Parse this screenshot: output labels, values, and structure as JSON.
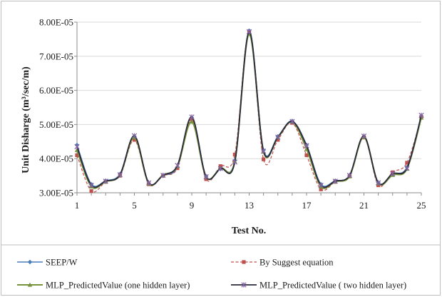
{
  "chart_data": {
    "type": "line",
    "xlabel": "Test No.",
    "ylabel": "Unit Disharge (m³/sec/m)",
    "xlim": [
      1,
      25
    ],
    "ylim": [
      3e-05,
      8e-05
    ],
    "x_ticks": [
      1,
      5,
      9,
      13,
      17,
      21,
      25
    ],
    "x_tick_labels": [
      "1",
      "5",
      "9",
      "13",
      "17",
      "21",
      "25"
    ],
    "y_ticks": [
      3e-05,
      4e-05,
      5e-05,
      6e-05,
      7e-05,
      8e-05
    ],
    "y_tick_labels": [
      "3.00E-05",
      "4.00E-05",
      "5.00E-05",
      "6.00E-05",
      "7.00E-05",
      "8.00E-05"
    ],
    "grid": {
      "horizontal": true,
      "vertical": false
    },
    "legend_position": "bottom",
    "x": [
      1,
      2,
      3,
      4,
      5,
      6,
      7,
      8,
      9,
      10,
      11,
      12,
      13,
      14,
      15,
      16,
      17,
      18,
      19,
      20,
      21,
      22,
      23,
      24,
      25
    ],
    "series": [
      {
        "name": "SEEP/W",
        "color": "#4a7ebb",
        "marker": "diamond",
        "dash": "solid",
        "values": [
          4.4e-05,
          3.25e-05,
          3.35e-05,
          3.55e-05,
          4.65e-05,
          3.28e-05,
          3.5e-05,
          3.75e-05,
          5.2e-05,
          3.48e-05,
          3.7e-05,
          3.95e-05,
          7.75e-05,
          4.25e-05,
          4.65e-05,
          5.1e-05,
          4.4e-05,
          3.25e-05,
          3.35e-05,
          3.5e-05,
          4.65e-05,
          3.3e-05,
          3.55e-05,
          3.75e-05,
          5.25e-05
        ]
      },
      {
        "name": "By Suggest equation",
        "color": "#c0504d",
        "marker": "square",
        "dash": "dashed",
        "values": [
          4.1e-05,
          3.05e-05,
          3.32e-05,
          3.5e-05,
          4.55e-05,
          3.25e-05,
          3.5e-05,
          3.72e-05,
          5.15e-05,
          3.4e-05,
          3.78e-05,
          4.12e-05,
          7.7e-05,
          3.98e-05,
          4.55e-05,
          5.05e-05,
          4.1e-05,
          3.1e-05,
          3.32e-05,
          3.48e-05,
          4.62e-05,
          3.22e-05,
          3.6e-05,
          3.88e-05,
          5.22e-05
        ]
      },
      {
        "name": "MLP_PredictedValue (one hidden layer)",
        "color": "#77933c",
        "marker": "triangle",
        "dash": "solid",
        "values": [
          4.25e-05,
          3.18e-05,
          3.33e-05,
          3.52e-05,
          4.62e-05,
          3.27e-05,
          3.52e-05,
          3.78e-05,
          5.08e-05,
          3.46e-05,
          3.72e-05,
          3.92e-05,
          7.65e-05,
          4.2e-05,
          4.62e-05,
          5.08e-05,
          4.28e-05,
          3.18e-05,
          3.33e-05,
          3.48e-05,
          4.63e-05,
          3.28e-05,
          3.52e-05,
          3.7e-05,
          5.2e-05
        ]
      },
      {
        "name": "MLP_PredictedValue ( two hidden layer)",
        "color": "#2a2a3a",
        "marker": "star",
        "dash": "solid",
        "values": [
          4.35e-05,
          3.22e-05,
          3.34e-05,
          3.53e-05,
          4.67e-05,
          3.29e-05,
          3.51e-05,
          3.8e-05,
          5.22e-05,
          3.47e-05,
          3.71e-05,
          3.9e-05,
          7.72e-05,
          4.22e-05,
          4.63e-05,
          5.09e-05,
          4.38e-05,
          3.22e-05,
          3.34e-05,
          3.51e-05,
          4.66e-05,
          3.29e-05,
          3.56e-05,
          3.72e-05,
          5.27e-05
        ]
      }
    ]
  }
}
